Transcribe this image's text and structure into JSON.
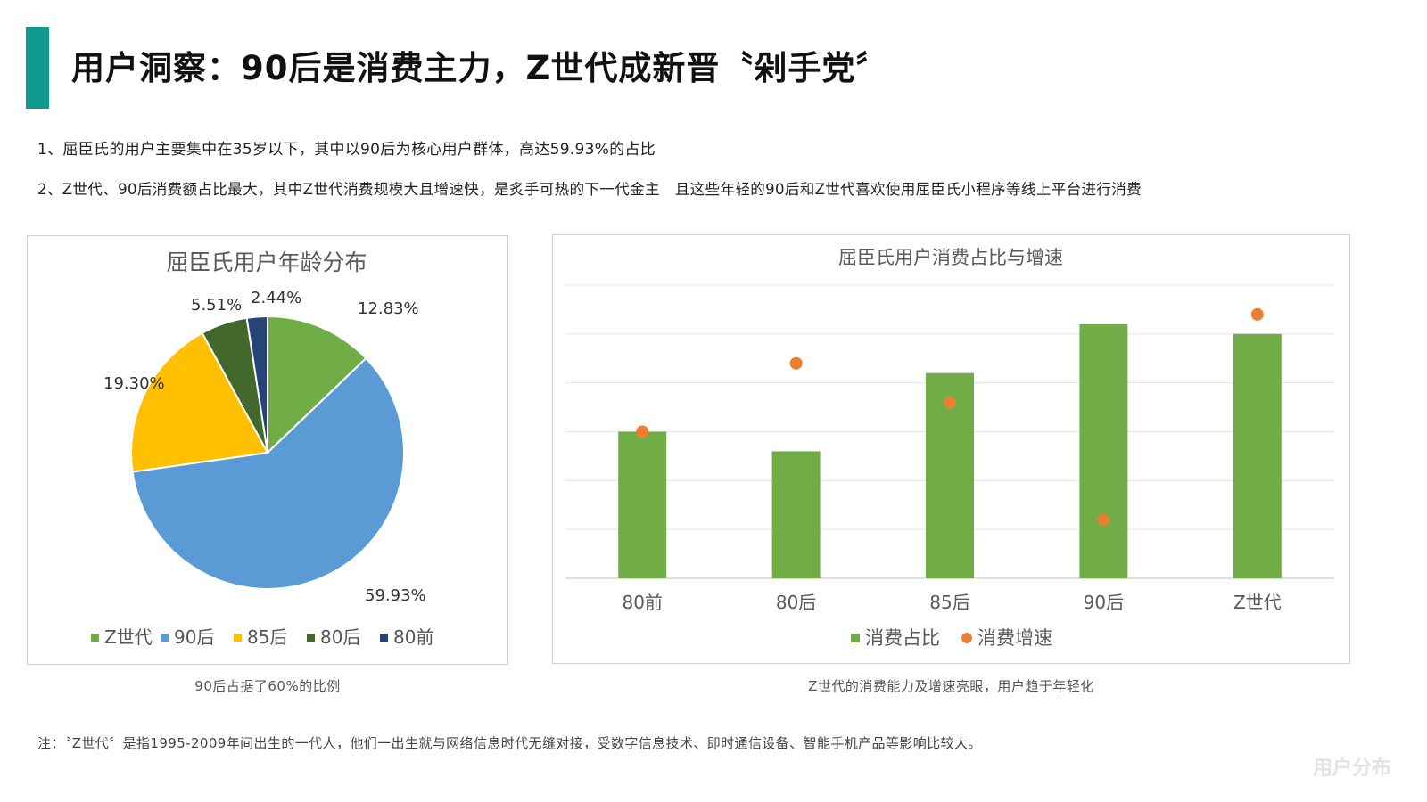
{
  "page": {
    "title": "用户洞察：90后是消费主力，Z世代成新晋〝剁手党〞",
    "bullets": [
      "1、屈臣氏的用户主要集中在35岁以下，其中以90后为核心用户群体，高达59.93%的占比",
      "2、Z世代、90后消费额占比最大，其中Z世代消费规模大且增速快，是炙手可热的下一代金主　且这些年轻的90后和Z世代喜欢使用屈臣氏小程序等线上平台进行消费"
    ],
    "caption_left": "90后占据了60%的比例",
    "caption_right": "Z世代的消费能力及增速亮眼，用户趋于年轻化",
    "footnote": "注：〝Z世代〞是指1995-2009年间出生的一代人，他们一出生就与网络信息时代无缝对接，受数字信息技术、即时通信设备、智能手机产品等影响比较大。",
    "watermark": "用户分布"
  },
  "colors": {
    "accent": "#10998e",
    "green": "#70ad47",
    "blue": "#5b9bd5",
    "yellow": "#ffc000",
    "darkgreen": "#43682b",
    "navy": "#264478",
    "orange": "#ed7d31"
  },
  "chart_data": [
    {
      "type": "pie",
      "title": "屈臣氏用户年龄分布",
      "slices": [
        {
          "name": "Z世代",
          "value": 12.83,
          "label": "12.83%",
          "color": "#70ad47"
        },
        {
          "name": "90后",
          "value": 59.93,
          "label": "59.93%",
          "color": "#5b9bd5"
        },
        {
          "name": "85后",
          "value": 19.3,
          "label": "19.30%",
          "color": "#ffc000"
        },
        {
          "name": "80后",
          "value": 5.51,
          "label": "5.51%",
          "color": "#43682b"
        },
        {
          "name": "80前",
          "value": 2.44,
          "label": "2.44%",
          "color": "#264478"
        }
      ],
      "legend_position": "bottom"
    },
    {
      "type": "bar",
      "title": "屈臣氏用户消费占比与增速",
      "categories": [
        "80前",
        "80后",
        "85后",
        "90后",
        "Z世代"
      ],
      "series": [
        {
          "name": "消费占比",
          "kind": "bar",
          "color": "#70ad47",
          "values": [
            3.0,
            2.6,
            4.2,
            5.2,
            5.0
          ]
        },
        {
          "name": "消费增速",
          "kind": "scatter",
          "color": "#ed7d31",
          "values": [
            3.0,
            4.4,
            3.6,
            1.2,
            5.4
          ]
        }
      ],
      "ylim": [
        0,
        6
      ],
      "grid": true,
      "y_ticks_shown": false,
      "legend_position": "bottom"
    }
  ]
}
